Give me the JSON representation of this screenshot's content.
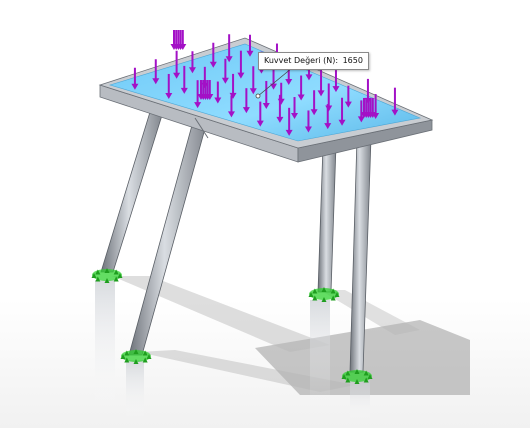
{
  "force_callout": {
    "label": "Kuvvet Değeri (N):",
    "value": "1650"
  },
  "colors": {
    "background": "#ffffff",
    "floor_shadow": "#9a9a9a",
    "tabletop_face": "#7fd4ff",
    "frame_metal": "#b8bcc2",
    "force_arrow": "#a311c6",
    "fixture_marker": "#2fd12f"
  },
  "icons": [
    "force-arrow-icon",
    "fixed-geometry-icon"
  ]
}
